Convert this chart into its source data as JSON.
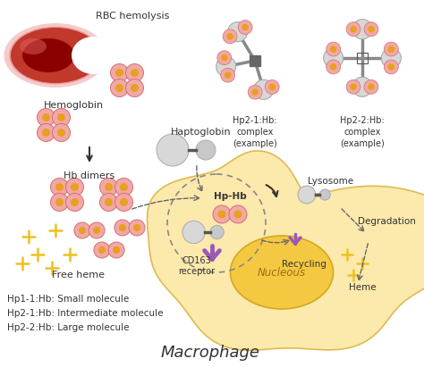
{
  "background_color": "#ffffff",
  "macrophage_color": "#fce8a8",
  "macrophage_edge": "#e8c96a",
  "nucleus_color": "#f5c842",
  "nucleus_edge": "#d4a820",
  "receptor_purple": "#9b59b6",
  "text_color": "#333333",
  "labels": {
    "rbc": "RBC hemolysis",
    "hemoglobin": "Hemoglobin",
    "hb_dimers": "Hb dimers",
    "free_heme": "Free heme",
    "haptoglobin": "Haptoglobin",
    "hp_hb": "Hp-Hb",
    "cd163": "CD163\nreceptor",
    "lysosome": "Lysosome",
    "degradation": "Degradation",
    "recycling": "Recycling",
    "heme": "Heme",
    "nucleous": "Nucleous",
    "macrophage": "Macrophage",
    "hp21_hb": "Hp2-1:Hb:\ncomplex\n(example)",
    "hp22_hb": "Hp2-2:Hb:\ncomplex\n(example)",
    "legend1": "Hp1-1:Hb: Small molecule",
    "legend2": "Hp2-1:Hb: Intermediate molecule",
    "legend3": "Hp2-2:Hb: Large molecule"
  }
}
